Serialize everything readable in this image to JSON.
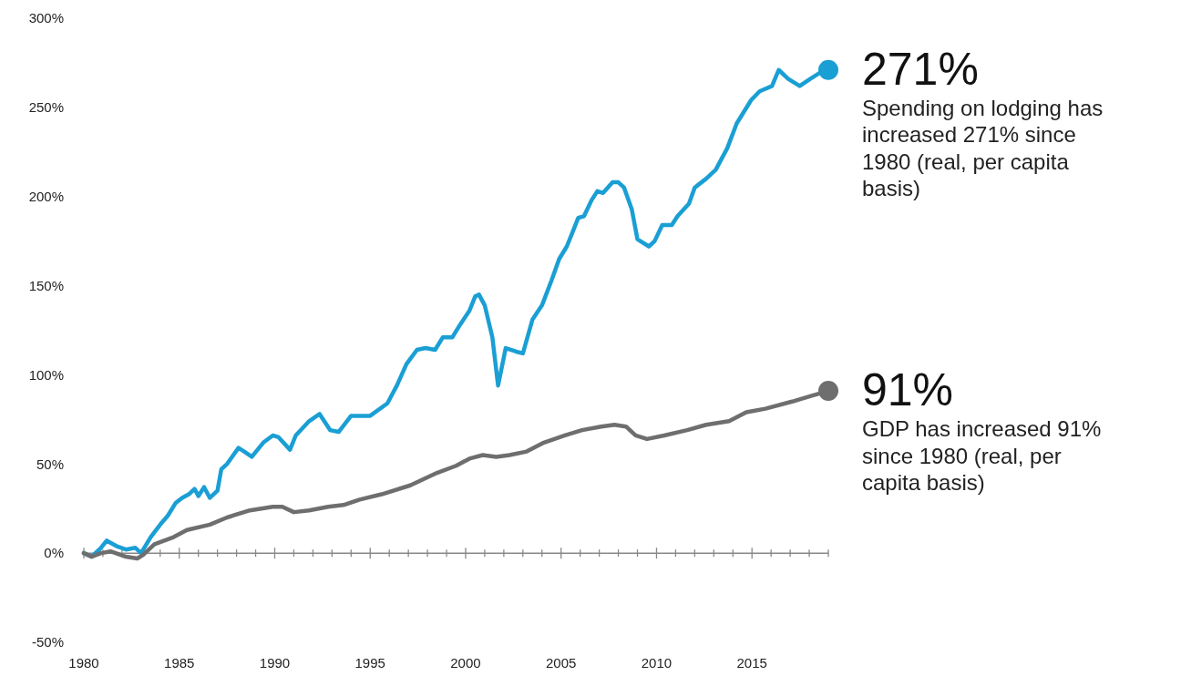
{
  "chart_data": {
    "type": "line",
    "xlim": [
      1980,
      2019
    ],
    "ylim": [
      -50,
      300
    ],
    "xticks": [
      1980,
      {
        "value": 1981,
        "label": null
      },
      {
        "value": 1982,
        "label": null
      },
      {
        "value": 1983,
        "label": null
      },
      {
        "value": 1984,
        "label": null
      },
      1985,
      {
        "value": 1986,
        "label": null
      },
      {
        "value": 1987,
        "label": null
      },
      {
        "value": 1988,
        "label": null
      },
      {
        "value": 1989,
        "label": null
      },
      1990,
      {
        "value": 1991,
        "label": null
      },
      {
        "value": 1992,
        "label": null
      },
      {
        "value": 1993,
        "label": null
      },
      {
        "value": 1994,
        "label": null
      },
      1995,
      {
        "value": 1996,
        "label": null
      },
      {
        "value": 1997,
        "label": null
      },
      {
        "value": 1998,
        "label": null
      },
      {
        "value": 1999,
        "label": null
      },
      2000,
      {
        "value": 2001,
        "label": null
      },
      {
        "value": 2002,
        "label": null
      },
      {
        "value": 2003,
        "label": null
      },
      {
        "value": 2004,
        "label": null
      },
      2005,
      {
        "value": 2006,
        "label": null
      },
      {
        "value": 2007,
        "label": null
      },
      {
        "value": 2008,
        "label": null
      },
      {
        "value": 2009,
        "label": null
      },
      2010,
      {
        "value": 2011,
        "label": null
      },
      {
        "value": 2012,
        "label": null
      },
      {
        "value": 2013,
        "label": null
      },
      {
        "value": 2014,
        "label": null
      },
      2015,
      {
        "value": 2016,
        "label": null
      },
      {
        "value": 2017,
        "label": null
      },
      {
        "value": 2018,
        "label": null
      },
      {
        "value": 2019,
        "label": null
      }
    ],
    "yticks": [
      {
        "value": -50,
        "label": "-50%"
      },
      {
        "value": 0,
        "label": "0%"
      },
      {
        "value": 50,
        "label": "50%"
      },
      {
        "value": 100,
        "label": "100%"
      },
      {
        "value": 150,
        "label": "150%"
      },
      {
        "value": 200,
        "label": "200%"
      },
      {
        "value": 250,
        "label": "250%"
      },
      {
        "value": 300,
        "label": "300%"
      }
    ],
    "line_style": "solid",
    "marker": "none",
    "series": [
      {
        "color": "#1a9fd4",
        "x": [
          1980,
          1980.4,
          1980.9,
          1981.2,
          1981.7,
          1982.2,
          1982.7,
          1983,
          1983.5,
          1984,
          1984.4,
          1984.8,
          1985.15,
          1985.5,
          1985.8,
          1986,
          1986.3,
          1986.6,
          1987,
          1987.2,
          1987.5,
          1988.1,
          1988.4,
          1988.8,
          1989.4,
          1989.9,
          1990.2,
          1990.8,
          1991.1,
          1991.8,
          1992.35,
          1992.9,
          1993.35,
          1994,
          1994.7,
          1995,
          1995.9,
          1996.4,
          1996.9,
          1997.45,
          1997.9,
          1998.4,
          1998.8,
          1999.3,
          1999.7,
          2000.2,
          2000.5,
          2000.7,
          2001,
          2001.4,
          2001.7,
          2002.1,
          2002.65,
          2003,
          2003.5,
          2004,
          2004.5,
          2004.9,
          2005.3,
          2005.9,
          2006.2,
          2006.6,
          2006.9,
          2007.2,
          2007.7,
          2008,
          2008.3,
          2008.7,
          2009,
          2009.6,
          2009.9,
          2010.3,
          2010.8,
          2011.1,
          2011.7,
          2012,
          2012.6,
          2013.1,
          2013.7,
          2014.2,
          2014.95,
          2015.4,
          2016.05,
          2016.4,
          2016.9,
          2017.5,
          2018.05,
          2018.5,
          2019
        ],
        "values": [
          0,
          -2,
          3,
          7,
          4,
          2,
          3,
          0,
          9,
          16,
          21,
          28,
          31,
          33,
          36,
          32,
          37,
          31,
          35,
          47,
          50,
          59,
          57,
          54,
          62,
          66,
          65,
          58,
          66,
          74,
          78,
          69,
          68,
          77,
          77,
          77,
          84,
          94,
          106,
          114,
          115,
          114,
          121,
          121,
          128,
          136,
          144,
          145,
          139,
          121,
          94,
          115,
          113,
          112,
          131,
          139,
          153,
          165,
          172,
          188,
          189,
          198,
          203,
          202,
          208,
          208,
          205,
          193,
          176,
          172,
          175,
          184,
          184,
          189,
          196,
          205,
          210,
          215,
          227,
          241,
          254,
          259,
          262,
          271,
          266,
          262,
          266,
          269,
          271
        ]
      },
      {
        "color": "#6e6e6e",
        "x": [
          1980,
          1980.4,
          1980.9,
          1981.4,
          1982.2,
          1982.8,
          1983.1,
          1983.7,
          1984.7,
          1985.4,
          1986.6,
          1987.5,
          1988.7,
          1989.9,
          1990.4,
          1991,
          1991.8,
          1992.8,
          1993.6,
          1994.45,
          1995.6,
          1997.1,
          1998.5,
          1999.5,
          2000.2,
          2000.9,
          2001.6,
          2002.3,
          2003.2,
          2004.1,
          2005.2,
          2006.1,
          2007.1,
          2007.8,
          2008.4,
          2008.9,
          2009.5,
          2010.4,
          2011.6,
          2012.6,
          2013.8,
          2014.7,
          2015.7,
          2017.1,
          2018.05,
          2019
        ],
        "values": [
          0,
          -2,
          0,
          1,
          -2,
          -3,
          -1,
          5,
          9,
          13,
          16,
          20,
          24,
          26,
          26,
          23,
          24,
          26,
          27,
          30,
          33,
          38,
          45,
          49,
          53,
          55,
          54,
          55,
          57,
          62,
          66,
          69,
          71,
          72,
          71,
          66,
          64,
          66,
          69,
          72,
          74,
          79,
          81,
          85,
          88,
          91
        ]
      },
      {
        "type": "scatter",
        "marker": "circle",
        "color": "#1a9fd4",
        "x": [
          2019
        ],
        "values": [
          271
        ]
      },
      {
        "type": "scatter",
        "marker": "circle",
        "color": "#6e6e6e",
        "x": [
          2019
        ],
        "values": [
          91
        ]
      }
    ],
    "annotations": [
      {
        "text": "271%",
        "x": 2019,
        "y": 271
      },
      "Spending on lodging has increased 271% since 1980 (real, per capita basis)",
      {
        "text": "91%",
        "x": 2019,
        "y": 91
      },
      "GDP has increased 91% since 1980 (real, per capita basis)"
    ]
  }
}
